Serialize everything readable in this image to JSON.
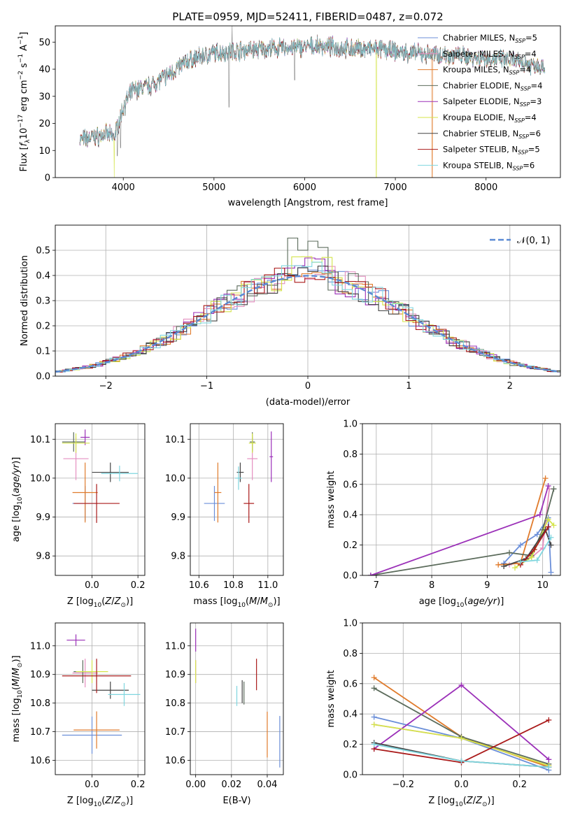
{
  "figure": {
    "title": "PLATE=0959, MJD=52411, FIBERID=0487, z=0.072"
  },
  "colors": {
    "palette": [
      "#6b8fd9",
      "#e48fc0",
      "#e07b2c",
      "#5b6b5b",
      "#9b30b8",
      "#d4e44a",
      "#444444",
      "#aa1a1a",
      "#7fd6df"
    ],
    "normal": "#5a8ad4",
    "grid": "#b0b0b0",
    "spectrum": "#888888"
  },
  "chart_data": [
    {
      "id": "spectrum",
      "type": "line",
      "xlabel": "wavelength [Angstrom, rest frame]",
      "ylabel": "Flux [f_λ10^-17 erg cm^-2 s^-1 A^-1]",
      "xlim": [
        3250,
        8820
      ],
      "ylim": [
        0,
        56
      ],
      "xticks": [
        4000,
        5000,
        6000,
        7000,
        8000
      ],
      "yticks": [
        0,
        10,
        20,
        30,
        40,
        50
      ],
      "grid": false,
      "legend": "top-right",
      "anchors_x": [
        3520,
        3700,
        3800,
        3900,
        4000,
        4100,
        4300,
        4500,
        4700,
        5000,
        5300,
        5600,
        5900,
        6200,
        6500,
        6800,
        7100,
        7400,
        7700,
        8000,
        8300,
        8650
      ],
      "anchors_y": [
        14,
        15,
        16,
        15,
        26,
        32,
        34,
        38,
        43,
        46,
        47,
        47.5,
        48,
        48.5,
        47.5,
        47.5,
        46,
        45.5,
        45,
        44,
        43,
        41
      ],
      "spikes": [
        {
          "x": 5200,
          "y": 56
        },
        {
          "x": 5167,
          "y": 26
        },
        {
          "x": 5890,
          "y": 36
        },
        {
          "x": 3934,
          "y": 8
        },
        {
          "x": 3969,
          "y": 11
        }
      ],
      "drops": [
        {
          "series": "Kroupa ELODIE, N_SSP=4",
          "x": 3900
        },
        {
          "series": "Kroupa ELODIE, N_SSP=4",
          "x": 6790
        },
        {
          "series": "Kroupa MILES, N_SSP=4",
          "x": 7405
        }
      ],
      "series": [
        {
          "name": "Chabrier MILES, N",
          "sub": "SSP",
          "suffix": "=5"
        },
        {
          "name": "Salpeter MILES, N",
          "sub": "SSP",
          "suffix": "=4"
        },
        {
          "name": "Kroupa MILES, N",
          "sub": "SSP",
          "suffix": "=4"
        },
        {
          "name": "Chabrier ELODIE, N",
          "sub": "SSP",
          "suffix": "=4"
        },
        {
          "name": "Salpeter ELODIE, N",
          "sub": "SSP",
          "suffix": "=3"
        },
        {
          "name": "Kroupa ELODIE, N",
          "sub": "SSP",
          "suffix": "=4"
        },
        {
          "name": "Chabrier STELIB, N",
          "sub": "SSP",
          "suffix": "=6"
        },
        {
          "name": "Salpeter STELIB, N",
          "sub": "SSP",
          "suffix": "=5"
        },
        {
          "name": "Kroupa STELIB, N",
          "sub": "SSP",
          "suffix": "=6"
        }
      ]
    },
    {
      "id": "residuals",
      "type": "line",
      "xlabel": "(data-model)/error",
      "ylabel": "Normed distribution",
      "xlim": [
        -2.5,
        2.5
      ],
      "ylim": [
        0,
        0.6
      ],
      "xticks": [
        -2,
        -1,
        0,
        1,
        2
      ],
      "yticks": [
        0.0,
        0.1,
        0.2,
        0.3,
        0.4,
        0.5
      ],
      "grid": true,
      "legend": "top-right",
      "legend_label": "𝒩(0, 1)",
      "bin_width": 0.1,
      "histogram_peaks": [
        0.45,
        0.42,
        0.44,
        0.57,
        0.47,
        0.5,
        0.44,
        0.4,
        0.46
      ]
    },
    {
      "id": "age-vs-Z",
      "type": "scatter",
      "xlabel": "Z [log₁₀(Z/Z☉)]",
      "ylabel": "age [log₁₀(age/yr)]",
      "xlim": [
        -0.16,
        0.23
      ],
      "ylim": [
        9.75,
        10.14
      ],
      "xticks": [
        0.0,
        0.2
      ],
      "yticks": [
        9.8,
        9.9,
        10.0,
        10.1
      ],
      "grid": true,
      "points": [
        {
          "x": -0.03,
          "y": 9.935,
          "xerr": 0.055,
          "yerr": 0.045
        },
        {
          "x": -0.07,
          "y": 10.05,
          "xerr": 0.055,
          "yerr": 0.055
        },
        {
          "x": -0.03,
          "y": 9.963,
          "xerr": 0.055,
          "yerr": 0.077
        },
        {
          "x": -0.08,
          "y": 10.093,
          "xerr": 0.05,
          "yerr": 0.025
        },
        {
          "x": -0.03,
          "y": 10.105,
          "xerr": 0.02,
          "yerr": 0.02
        },
        {
          "x": -0.07,
          "y": 10.09,
          "xerr": 0.06,
          "yerr": 0.025
        },
        {
          "x": 0.08,
          "y": 10.015,
          "xerr": 0.08,
          "yerr": 0.025
        },
        {
          "x": 0.02,
          "y": 9.935,
          "xerr": 0.1,
          "yerr": 0.05
        },
        {
          "x": 0.12,
          "y": 10.012,
          "xerr": 0.08,
          "yerr": 0.02
        }
      ]
    },
    {
      "id": "age-vs-mass",
      "type": "scatter",
      "xlabel": "mass [log₁₀(M/M☉)]",
      "ylabel": "",
      "xlim": [
        10.55,
        11.09
      ],
      "ylim": [
        9.75,
        10.14
      ],
      "xticks": [
        10.6,
        10.8,
        11.0
      ],
      "yticks": [
        9.8,
        9.9,
        10.0,
        10.1
      ],
      "grid": true,
      "points": [
        {
          "x": 10.69,
          "y": 9.935,
          "xerr": 0.06,
          "yerr": 0.045
        },
        {
          "x": 10.91,
          "y": 10.05,
          "xerr": 0.03,
          "yerr": 0.055
        },
        {
          "x": 10.71,
          "y": 9.963,
          "xerr": 0.02,
          "yerr": 0.077
        },
        {
          "x": 10.91,
          "y": 10.093,
          "xerr": 0.015,
          "yerr": 0.025
        },
        {
          "x": 11.02,
          "y": 10.055,
          "xerr": 0.01,
          "yerr": 0.065
        },
        {
          "x": 10.91,
          "y": 10.09,
          "xerr": 0.02,
          "yerr": 0.025
        },
        {
          "x": 10.84,
          "y": 10.015,
          "xerr": 0.02,
          "yerr": 0.025
        },
        {
          "x": 10.89,
          "y": 9.935,
          "xerr": 0.03,
          "yerr": 0.05
        },
        {
          "x": 10.83,
          "y": 10.0,
          "xerr": 0.02,
          "yerr": 0.03
        }
      ]
    },
    {
      "id": "weight-vs-age",
      "type": "line",
      "xlabel": "age [log₁₀(age/yr)]",
      "ylabel": "mass weight",
      "xlim": [
        6.75,
        10.32
      ],
      "ylim": [
        0,
        1
      ],
      "xticks": [
        7,
        8,
        9,
        10
      ],
      "yticks": [
        0.0,
        0.2,
        0.4,
        0.6,
        0.8,
        1.0
      ],
      "grid": true,
      "series": [
        {
          "x": [
            9.3,
            9.6,
            9.9,
            10.1,
            10.15
          ],
          "y": [
            0.08,
            0.2,
            0.27,
            0.38,
            0.02
          ]
        },
        {
          "x": [
            9.4,
            9.8,
            10.0,
            10.12
          ],
          "y": [
            0.07,
            0.12,
            0.18,
            0.57
          ]
        },
        {
          "x": [
            9.2,
            9.6,
            10.05
          ],
          "y": [
            0.07,
            0.08,
            0.64
          ]
        },
        {
          "x": [
            6.9,
            9.4,
            9.8,
            10.0,
            10.2
          ],
          "y": [
            0.0,
            0.15,
            0.13,
            0.3,
            0.57
          ]
        },
        {
          "x": [
            6.9,
            9.95,
            10.1
          ],
          "y": [
            0.0,
            0.4,
            0.59
          ]
        },
        {
          "x": [
            9.5,
            9.8,
            10.1,
            10.2
          ],
          "y": [
            0.05,
            0.12,
            0.37,
            0.33
          ]
        },
        {
          "x": [
            9.3,
            9.7,
            10.05,
            10.15
          ],
          "y": [
            0.06,
            0.11,
            0.3,
            0.2
          ]
        },
        {
          "x": [
            9.6,
            9.85,
            10.1
          ],
          "y": [
            0.07,
            0.17,
            0.32
          ]
        },
        {
          "x": [
            9.6,
            9.9,
            10.15
          ],
          "y": [
            0.09,
            0.1,
            0.25
          ]
        }
      ]
    },
    {
      "id": "mass-vs-Z",
      "type": "scatter",
      "xlabel": "Z [log₁₀(Z/Z☉)]",
      "ylabel": "mass [log₁₀(M/M☉)]",
      "xlim": [
        -0.16,
        0.23
      ],
      "ylim": [
        10.55,
        11.08
      ],
      "xticks": [
        0.0,
        0.2
      ],
      "yticks": [
        10.6,
        10.7,
        10.8,
        10.9,
        11.0
      ],
      "grid": true,
      "points": [
        {
          "x": 0.0,
          "y": 10.688,
          "xerr": 0.13,
          "yerr": 0.065
        },
        {
          "x": -0.03,
          "y": 10.905,
          "xerr": 0.055,
          "yerr": 0.05
        },
        {
          "x": 0.02,
          "y": 10.706,
          "xerr": 0.1,
          "yerr": 0.065
        },
        {
          "x": -0.04,
          "y": 10.91,
          "xerr": 0.04,
          "yerr": 0.04
        },
        {
          "x": -0.07,
          "y": 11.02,
          "xerr": 0.04,
          "yerr": 0.02
        },
        {
          "x": 0.0,
          "y": 10.91,
          "xerr": 0.07,
          "yerr": 0.04
        },
        {
          "x": 0.08,
          "y": 10.845,
          "xerr": 0.08,
          "yerr": 0.03
        },
        {
          "x": 0.02,
          "y": 10.895,
          "xerr": 0.15,
          "yerr": 0.06
        },
        {
          "x": 0.14,
          "y": 10.83,
          "xerr": 0.07,
          "yerr": 0.04
        }
      ]
    },
    {
      "id": "mass-vs-ebv",
      "type": "scatter",
      "xlabel": "E(B-V)",
      "ylabel": "",
      "xlim": [
        -0.003,
        0.049
      ],
      "ylim": [
        10.55,
        11.08
      ],
      "xticks": [
        0.0,
        0.02,
        0.04
      ],
      "yticks": [
        10.6,
        10.7,
        10.8,
        10.9,
        11.0
      ],
      "grid": true,
      "points": [
        {
          "x": 0.047,
          "y": 10.665,
          "yerr": 0.09
        },
        {
          "x": 0.0,
          "y": 10.91,
          "yerr": 0.04
        },
        {
          "x": 0.04,
          "y": 10.69,
          "yerr": 0.08
        },
        {
          "x": 0.027,
          "y": 10.835,
          "yerr": 0.04
        },
        {
          "x": 0.0,
          "y": 11.02,
          "yerr": 0.04
        },
        {
          "x": 0.0,
          "y": 10.91,
          "yerr": 0.04
        },
        {
          "x": 0.026,
          "y": 10.84,
          "yerr": 0.04
        },
        {
          "x": 0.034,
          "y": 10.9,
          "yerr": 0.055
        },
        {
          "x": 0.023,
          "y": 10.825,
          "yerr": 0.035
        }
      ]
    },
    {
      "id": "weight-vs-Z",
      "type": "line",
      "xlabel": "Z [log₁₀(Z/Z☉)]",
      "ylabel": "mass weight",
      "xlim": [
        -0.34,
        0.34
      ],
      "ylim": [
        0,
        1
      ],
      "xticks": [
        -0.2,
        0.0,
        0.2
      ],
      "yticks": [
        0.0,
        0.2,
        0.4,
        0.6,
        0.8,
        1.0
      ],
      "grid": true,
      "series": [
        {
          "x": [
            -0.3,
            0.0,
            0.3
          ],
          "y": [
            0.38,
            0.24,
            0.03
          ]
        },
        {
          "x": [
            -0.3,
            0.0,
            0.3
          ],
          "y": [
            0.33,
            0.24,
            0.06
          ]
        },
        {
          "x": [
            -0.3,
            0.0,
            0.3
          ],
          "y": [
            0.64,
            0.25,
            0.05
          ]
        },
        {
          "x": [
            -0.3,
            0.0,
            0.3
          ],
          "y": [
            0.57,
            0.25,
            0.07
          ]
        },
        {
          "x": [
            -0.3,
            0.0,
            0.3
          ],
          "y": [
            0.17,
            0.59,
            0.1
          ]
        },
        {
          "x": [
            -0.3,
            0.0,
            0.3
          ],
          "y": [
            0.33,
            0.24,
            0.06
          ]
        },
        {
          "x": [
            -0.3,
            0.0,
            0.3
          ],
          "y": [
            0.21,
            0.09,
            0.05
          ]
        },
        {
          "x": [
            -0.3,
            0.0,
            0.3
          ],
          "y": [
            0.17,
            0.08,
            0.36
          ]
        },
        {
          "x": [
            -0.3,
            0.0,
            0.3
          ],
          "y": [
            0.2,
            0.09,
            0.05
          ]
        }
      ]
    }
  ]
}
